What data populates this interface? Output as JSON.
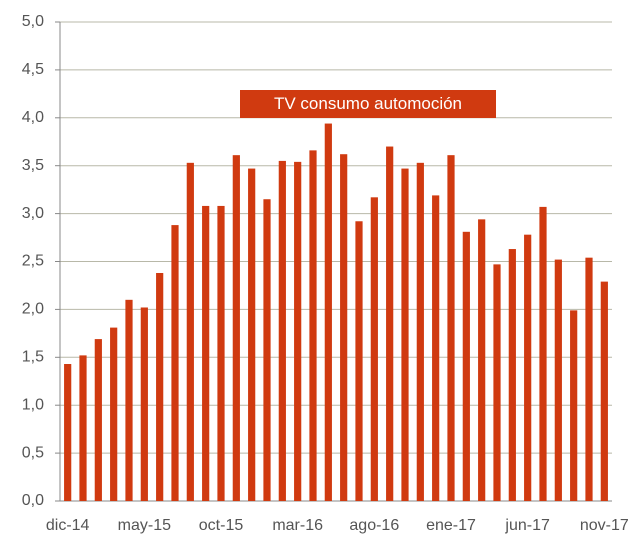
{
  "chart_data": {
    "type": "bar",
    "annotation": "TV consumo automoción",
    "categories": [
      "dic-14",
      null,
      null,
      null,
      null,
      "may-15",
      null,
      null,
      null,
      null,
      "oct-15",
      null,
      null,
      null,
      null,
      "mar-16",
      null,
      null,
      null,
      null,
      "ago-16",
      null,
      null,
      null,
      null,
      "ene-17",
      null,
      null,
      null,
      null,
      "jun-17",
      null,
      null,
      null,
      null,
      "nov-17"
    ],
    "values": [
      1.43,
      1.52,
      1.69,
      1.81,
      2.1,
      2.02,
      2.38,
      2.88,
      3.53,
      3.08,
      3.08,
      3.61,
      3.47,
      3.15,
      3.55,
      3.54,
      3.66,
      3.94,
      3.62,
      2.92,
      3.17,
      3.7,
      3.47,
      3.53,
      3.19,
      3.61,
      2.81,
      2.94,
      2.47,
      2.63,
      2.78,
      3.07,
      2.52,
      1.99,
      2.54,
      2.29
    ],
    "color": "#d03a10",
    "ylim": [
      0,
      5
    ],
    "yticks": [
      {
        "value": 0,
        "label": "0,0"
      },
      {
        "value": 0.5,
        "label": "0,5"
      },
      {
        "value": 1,
        "label": "1,0"
      },
      {
        "value": 1.5,
        "label": "1,5"
      },
      {
        "value": 2,
        "label": "2,0"
      },
      {
        "value": 2.5,
        "label": "2,5"
      },
      {
        "value": 3,
        "label": "3,0"
      },
      {
        "value": 3.5,
        "label": "3,5"
      },
      {
        "value": 4,
        "label": "4,0"
      },
      {
        "value": 4.5,
        "label": "4,5"
      },
      {
        "value": 5,
        "label": "5,0"
      }
    ],
    "grid": true
  }
}
